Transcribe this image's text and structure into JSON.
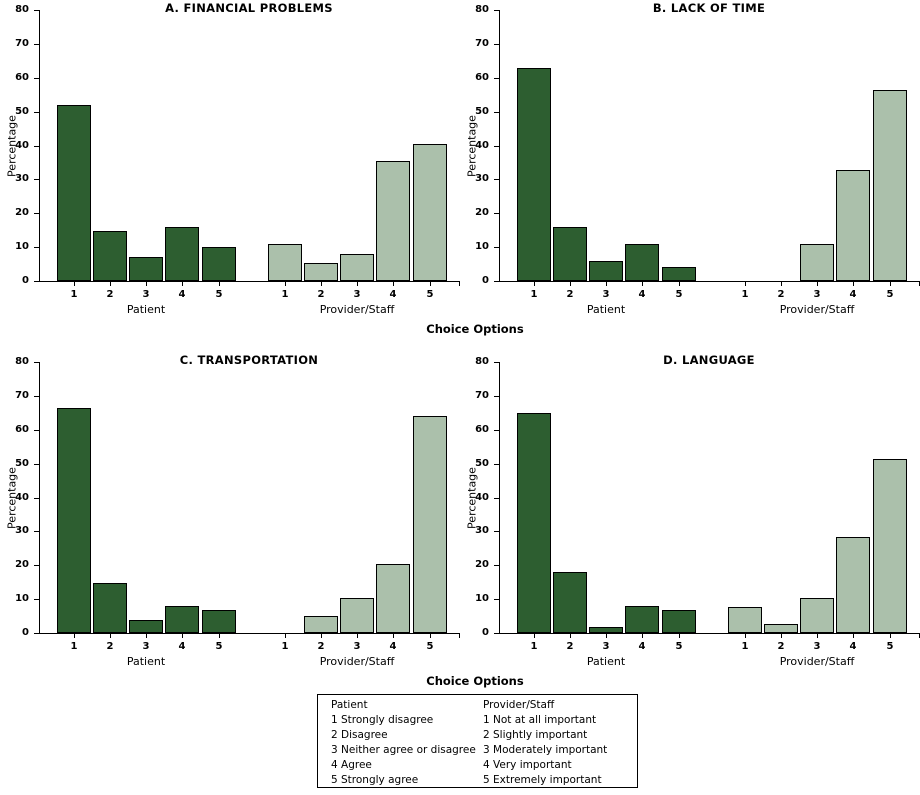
{
  "chart_data": {
    "type": "bar",
    "categories": [
      "1",
      "2",
      "3",
      "4",
      "5"
    ],
    "ylabel": "Percentage",
    "xlabel": "Choice Options",
    "ylim": [
      0,
      80
    ],
    "ytick_step": 10,
    "grid": false,
    "legend_position": "bottom",
    "colors": {
      "patient_bar": "#2d5e30",
      "provider_bar": "#abc0ab"
    },
    "panels": [
      {
        "title": "A. FINANCIAL PROBLEMS",
        "series": [
          {
            "name": "Patient",
            "values": [
              52.1,
              14.7,
              7.0,
              15.8,
              10.0
            ]
          },
          {
            "name": "Provider/Staff",
            "values": [
              10.8,
              5.4,
              8.1,
              35.4,
              40.3
            ]
          }
        ]
      },
      {
        "title": "B. LACK OF TIME",
        "series": [
          {
            "name": "Patient",
            "values": [
              62.9,
              16.0,
              5.8,
              10.8,
              4.0
            ]
          },
          {
            "name": "Provider/Staff",
            "values": [
              0,
              0,
              10.8,
              32.9,
              56.3
            ]
          }
        ]
      },
      {
        "title": "C. TRANSPORTATION",
        "series": [
          {
            "name": "Patient",
            "values": [
              66.3,
              14.8,
              3.9,
              7.9,
              6.8
            ]
          },
          {
            "name": "Provider/Staff",
            "values": [
              0,
              5.1,
              10.3,
              20.4,
              64.1
            ]
          }
        ]
      },
      {
        "title": "D. LANGUAGE",
        "series": [
          {
            "name": "Patient",
            "values": [
              64.9,
              18.0,
              1.8,
              7.9,
              6.8
            ]
          },
          {
            "name": "Provider/Staff",
            "values": [
              7.7,
              2.6,
              10.3,
              28.2,
              51.3
            ]
          }
        ]
      }
    ]
  },
  "legend": {
    "patient": {
      "header": "Patient",
      "items": [
        "1 Strongly disagree",
        "2 Disagree",
        "3 Neither agree or disagree",
        "4 Agree",
        "5 Strongly agree"
      ]
    },
    "provider_staff": {
      "header": "Provider/Staff",
      "items": [
        "1 Not at all important",
        "2 Slightly important",
        "3 Moderately important",
        "4 Very important",
        "5 Extremely important"
      ]
    }
  }
}
